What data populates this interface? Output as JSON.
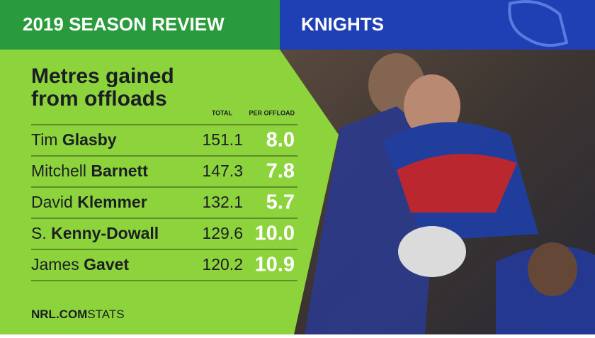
{
  "header": {
    "left": "2019 SEASON REVIEW",
    "right": "KNIGHTS"
  },
  "table": {
    "title": [
      "Metres gained",
      "from offloads"
    ],
    "columns": [
      "TOTAL",
      "PER OFFLOAD"
    ],
    "rows": [
      {
        "first": "Tim",
        "last": "Glasby",
        "total": "151.1",
        "per_offload": "8.0"
      },
      {
        "first": "Mitchell",
        "last": "Barnett",
        "total": "147.3",
        "per_offload": "7.8"
      },
      {
        "first": "David",
        "last": "Klemmer",
        "total": "132.1",
        "per_offload": "5.7"
      },
      {
        "first": "S.",
        "last": "Kenny-Dowall",
        "total": "129.6",
        "per_offload": "10.0"
      },
      {
        "first": "James",
        "last": "Gavet",
        "total": "120.2",
        "per_offload": "10.9"
      }
    ]
  },
  "footer": {
    "brand": "NRL.COM",
    "suffix": "STATS"
  }
}
